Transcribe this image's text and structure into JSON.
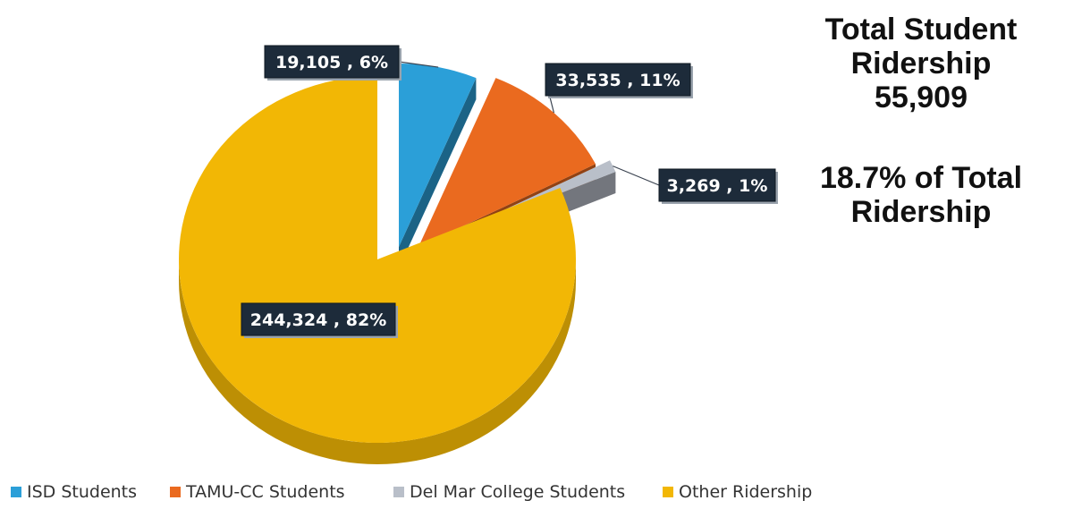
{
  "chart_data": {
    "type": "pie",
    "style": "3d-exploded",
    "slices": [
      {
        "label": "ISD Students",
        "value": 19105,
        "value_label": "19,105",
        "percent_label": "6%",
        "color": "#2b9fd8"
      },
      {
        "label": "TAMU-CC Students",
        "value": 33535,
        "value_label": "33,535",
        "percent_label": "11%",
        "color": "#ea6a1f"
      },
      {
        "label": "Del Mar College Students",
        "value": 3269,
        "value_label": "3,269",
        "percent_label": "1%",
        "color": "#b9bfc9"
      },
      {
        "label": "Other Ridership",
        "value": 244324,
        "value_label": "244,324",
        "percent_label": "82%",
        "color": "#f2b705"
      }
    ],
    "legend_position": "bottom"
  },
  "summary": {
    "title_lines": [
      "Total Student",
      "Ridership",
      "55,909"
    ],
    "share_lines": [
      "18.7% of Total",
      "Ridership"
    ]
  }
}
